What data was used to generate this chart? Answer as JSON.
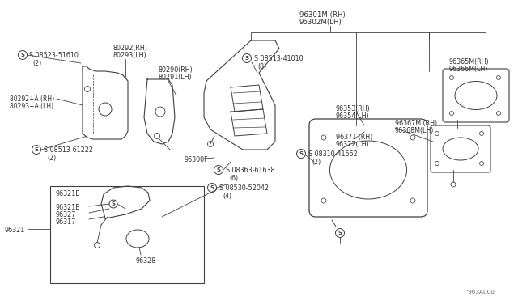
{
  "bg_color": "#ffffff",
  "line_color": "#404040",
  "text_color": "#303030",
  "watermark": "^963A000",
  "labels": {
    "screw_tl": "S 08523-51610",
    "screw_tl_qty": "(2)",
    "br1_rh": "80292(RH)",
    "br1_lh": "80293(LH)",
    "bra_rh": "80292+A (RH)",
    "bra_lh": "80293+A (LH)",
    "screw_bl": "S 08513-61222",
    "screw_bl_qty": "(2)",
    "br2_rh": "80290(RH)",
    "br2_lh": "80291(LH)",
    "base": "96300F",
    "screw_m1": "S 08513-41010",
    "screw_m1_qty": "(8)",
    "screw_m2": "S 08363-61638",
    "screw_m2_qty": "(6)",
    "screw_m3": "S 08530-52042",
    "screw_m3_qty": "(4)",
    "screw_m4": "S 08310-41662",
    "screw_m4_qty": "(2)",
    "assy_rh": "96301M (RH)",
    "assy_lh": "96302M(LH)",
    "p96353": "96353(RH)",
    "p96354": "96354(LH)",
    "p96367": "96367M (RH)",
    "p96368": "96368M(LH)",
    "p96371": "96371 (RH)",
    "p96372": "96372(LH)",
    "p96365": "96365M(RH)",
    "p96366": "96366M(LH)",
    "p96321e": "96321E",
    "p96327": "96327",
    "p96317": "96317",
    "p96321": "96321",
    "p96321b": "96321B",
    "p96328": "96328"
  }
}
